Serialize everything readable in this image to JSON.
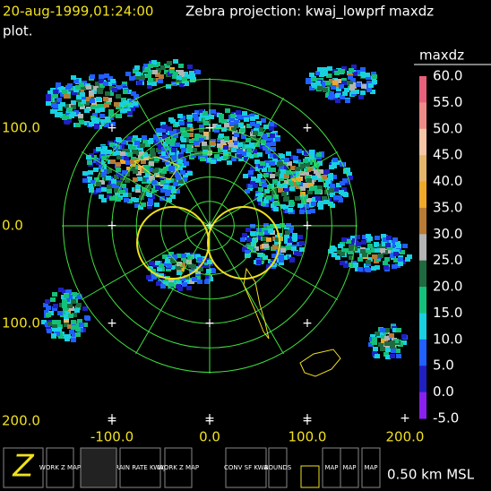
{
  "header": {
    "time": "20-aug-1999,01:24:00",
    "title": "Zebra projection: kwaj_lowprf maxdz",
    "title_cont": "plot."
  },
  "axes": {
    "x_labels": [
      "-100.0",
      "0.0",
      "100.0",
      "200.0"
    ],
    "y_labels": [
      "100.0",
      "0.0",
      "100.0",
      "200.0"
    ]
  },
  "colorbar": {
    "title": "maxdz",
    "labels": [
      "60.0",
      "55.0",
      "50.0",
      "45.0",
      "40.0",
      "35.0",
      "30.0",
      "25.0",
      "20.0",
      "15.0",
      "10.0",
      "5.0",
      "0.0",
      "-5.0"
    ],
    "colors": [
      "#e8607a",
      "#f08a86",
      "#f4c6a6",
      "#e6b46a",
      "#f0a82a",
      "#b87a34",
      "#b4b4b4",
      "#1f6a3e",
      "#14c07a",
      "#18d0e0",
      "#2060ff",
      "#2020c0",
      "#8a20f0"
    ]
  },
  "toolbar": {
    "buttons": [
      "WORK Z MAP",
      "RAIN RATE KWAJ",
      "WORK Z MAP",
      "CONV SF KWA",
      "BOUNDS",
      "MAP",
      "MAP",
      "MAP"
    ]
  },
  "footer": "0.50 km MSL"
}
